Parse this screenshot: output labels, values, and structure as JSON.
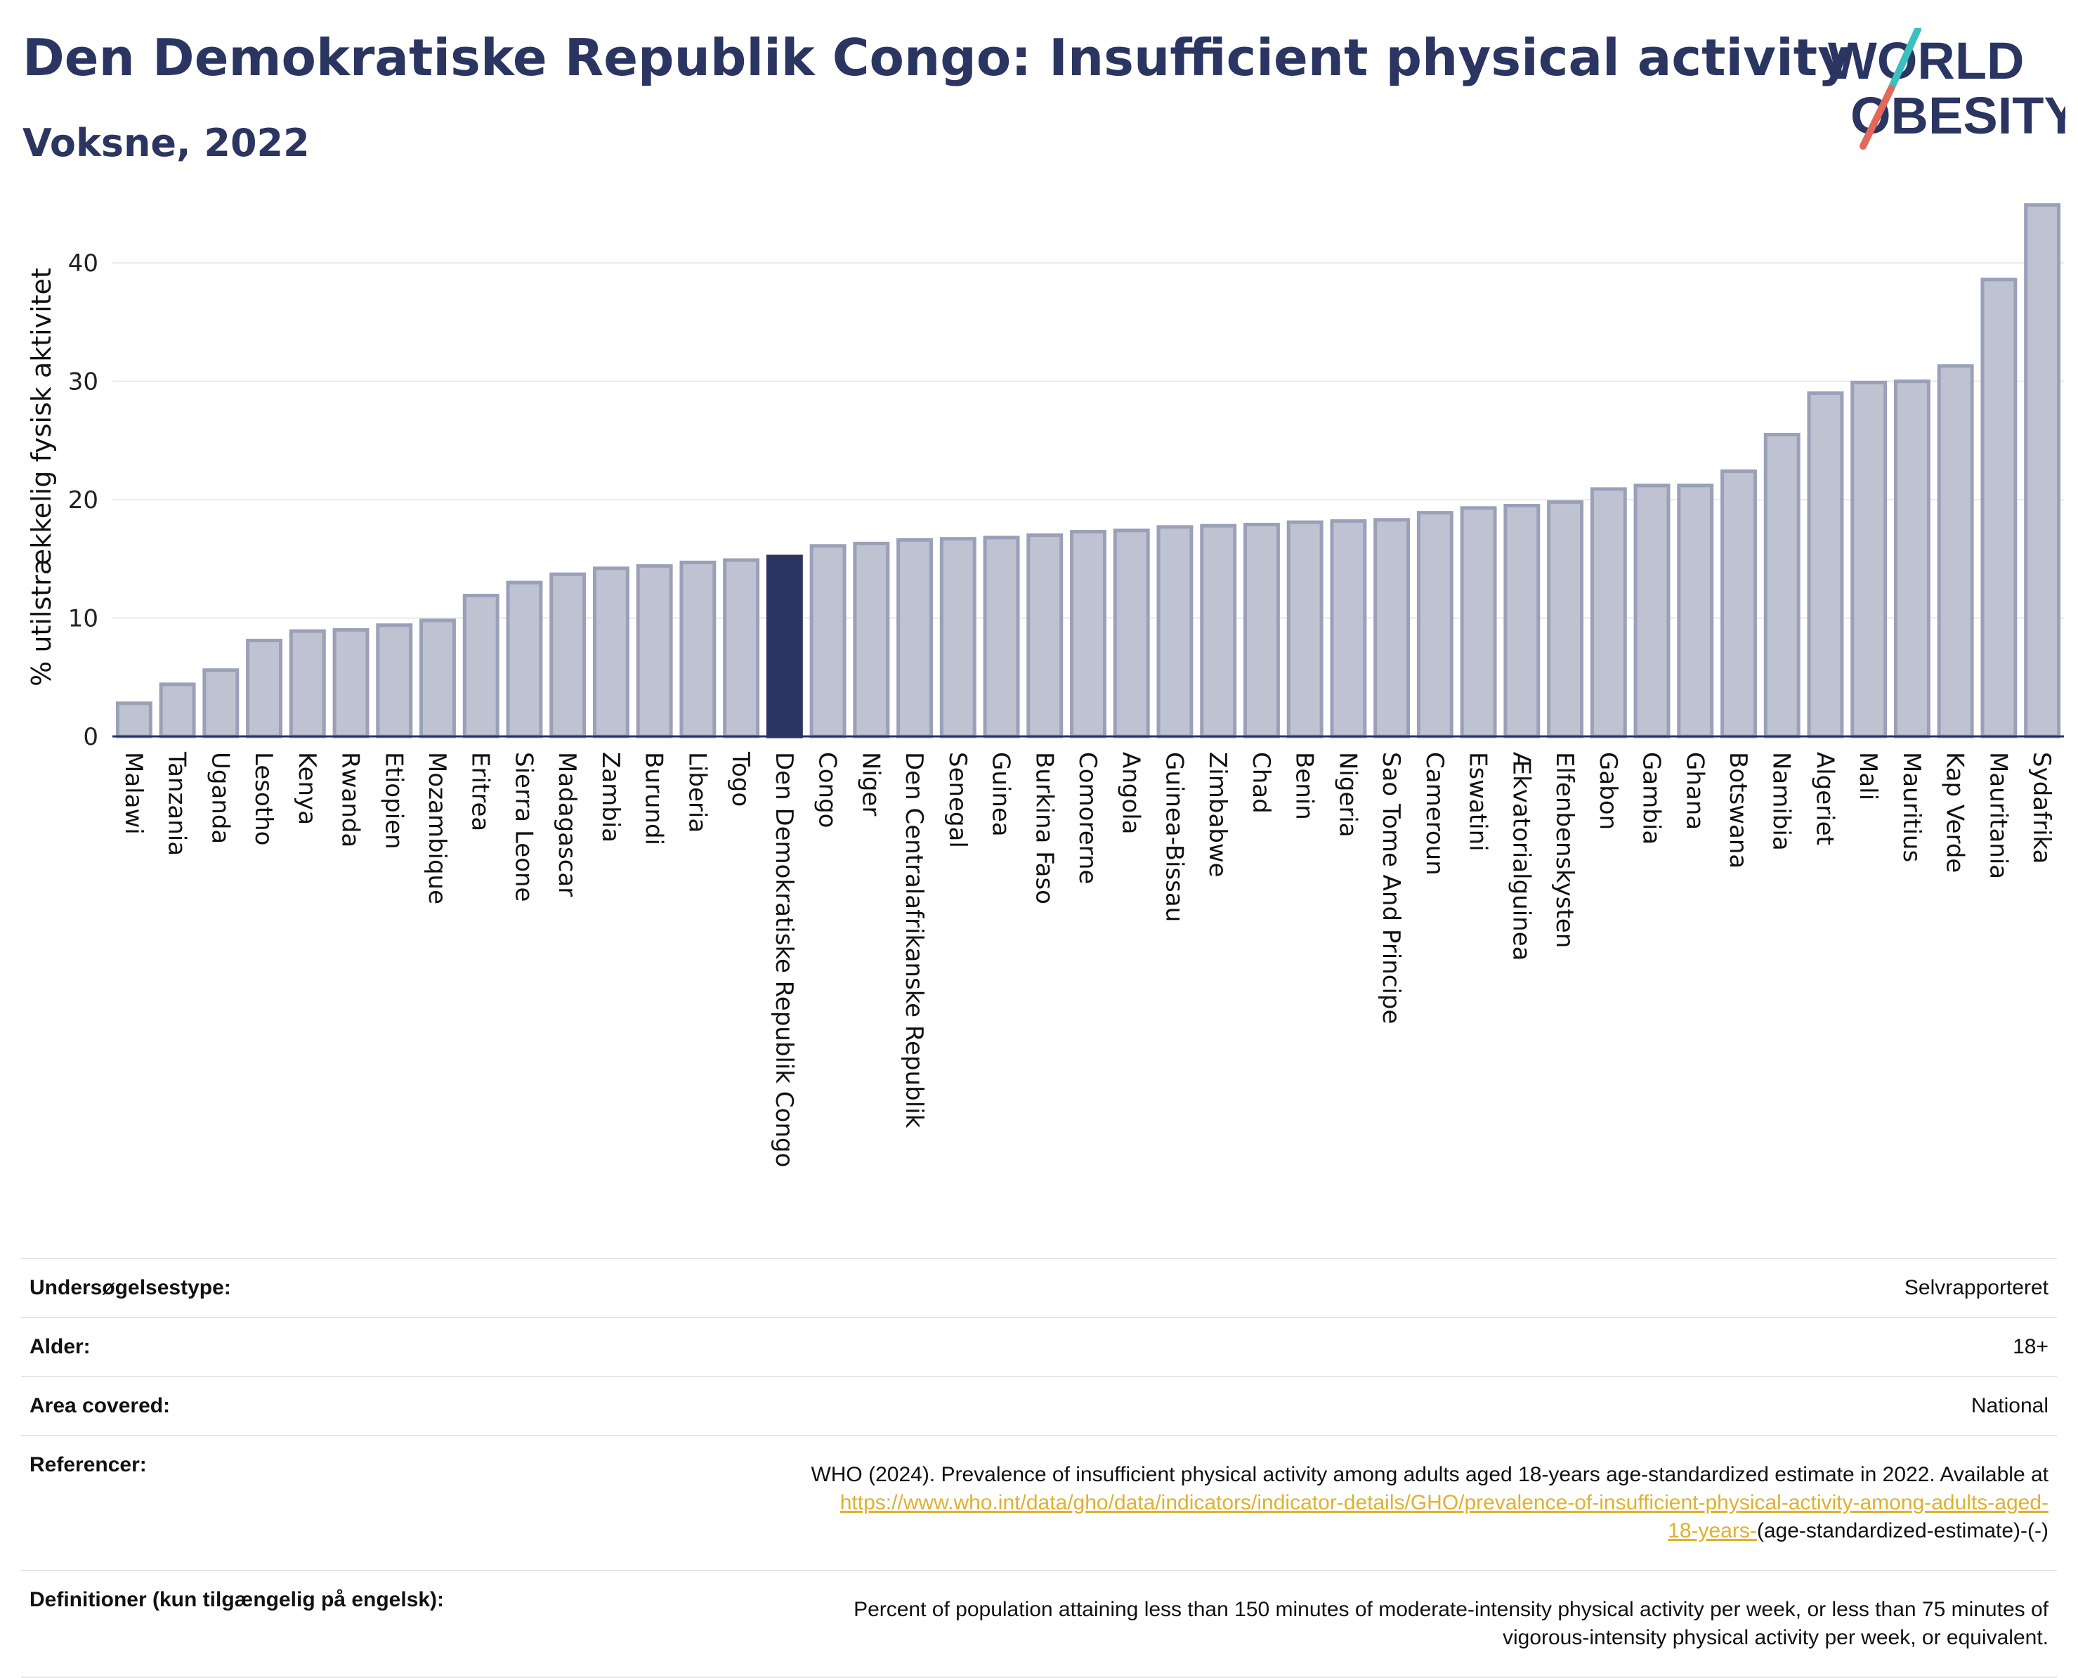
{
  "header": {
    "title": "Den Demokratiske Republik Congo: Insufficient physical activity",
    "subtitle": "Voksne, 2022",
    "logo_line1": "WORLD",
    "logo_line2": "OBESITY"
  },
  "colors": {
    "title": "#2b3562",
    "bar": "#bec2d1",
    "bar_stroke": "#9aa0b8",
    "highlight": "#2b3562",
    "link": "#e0b02e",
    "logo_slash_top": "#3bbfbf",
    "logo_slash_bottom": "#e2685a"
  },
  "chart_data": {
    "type": "bar",
    "ylabel": "% utilstrækkelig fysisk aktivitet",
    "ylim": [
      0,
      45
    ],
    "yticks": [
      0,
      10,
      20,
      30,
      40
    ],
    "grid": true,
    "highlight": "Den Demokratiske Republik Congo",
    "categories": [
      "Malawi",
      "Tanzania",
      "Uganda",
      "Lesotho",
      "Kenya",
      "Rwanda",
      "Etiopien",
      "Mozambique",
      "Eritrea",
      "Sierra Leone",
      "Madagascar",
      "Zambia",
      "Burundi",
      "Liberia",
      "Togo",
      "Den Demokratiske Republik Congo",
      "Congo",
      "Niger",
      "Den Centralafrikanske Republik",
      "Senegal",
      "Guinea",
      "Burkina Faso",
      "Comorerne",
      "Angola",
      "Guinea-Bissau",
      "Zimbabwe",
      "Chad",
      "Benin",
      "Nigeria",
      "Sao Tome And Principe",
      "Cameroun",
      "Eswatini",
      "Ækvatorialguinea",
      "Elfenbenskysten",
      "Gabon",
      "Gambia",
      "Ghana",
      "Botswana",
      "Namibia",
      "Algeriet",
      "Mali",
      "Mauritius",
      "Kap Verde",
      "Mauritania",
      "Sydafrika"
    ],
    "values": [
      2.8,
      4.4,
      5.6,
      8.1,
      8.9,
      9.0,
      9.4,
      9.8,
      11.9,
      13.0,
      13.7,
      14.2,
      14.4,
      14.7,
      14.9,
      15.2,
      16.1,
      16.3,
      16.6,
      16.7,
      16.8,
      17.0,
      17.3,
      17.4,
      17.7,
      17.8,
      17.9,
      18.1,
      18.2,
      18.3,
      18.9,
      19.3,
      19.5,
      19.8,
      20.9,
      21.2,
      21.2,
      22.4,
      25.5,
      29.0,
      29.9,
      30.0,
      31.3,
      38.6,
      44.9
    ]
  },
  "meta": {
    "rows": [
      {
        "label": "Undersøgelsestype:",
        "value": "Selvrapporteret"
      },
      {
        "label": "Alder:",
        "value": "18+"
      },
      {
        "label": "Area covered:",
        "value": "National"
      }
    ],
    "reference": {
      "label": "Referencer:",
      "text": "WHO (2024). Prevalence of insufficient physical activity among adults aged 18-years age-standardized estimate in 2022. Available at",
      "link_line1": "https://www.who.int/data/gho/data/indicators/indicator-details/GHO/prevalence-of-insufficient-physical-activity-among-adults-aged-",
      "link_line2": "18-years-",
      "suffix": "(age-standardized-estimate)-(-)"
    },
    "definition": {
      "label": "Definitioner (kun tilgængelig på engelsk):",
      "line1": "Percent of population attaining less than 150 minutes of moderate-intensity physical activity per week, or less than 75 minutes of",
      "line2": "vigorous-intensity physical activity per week, or equivalent."
    }
  }
}
